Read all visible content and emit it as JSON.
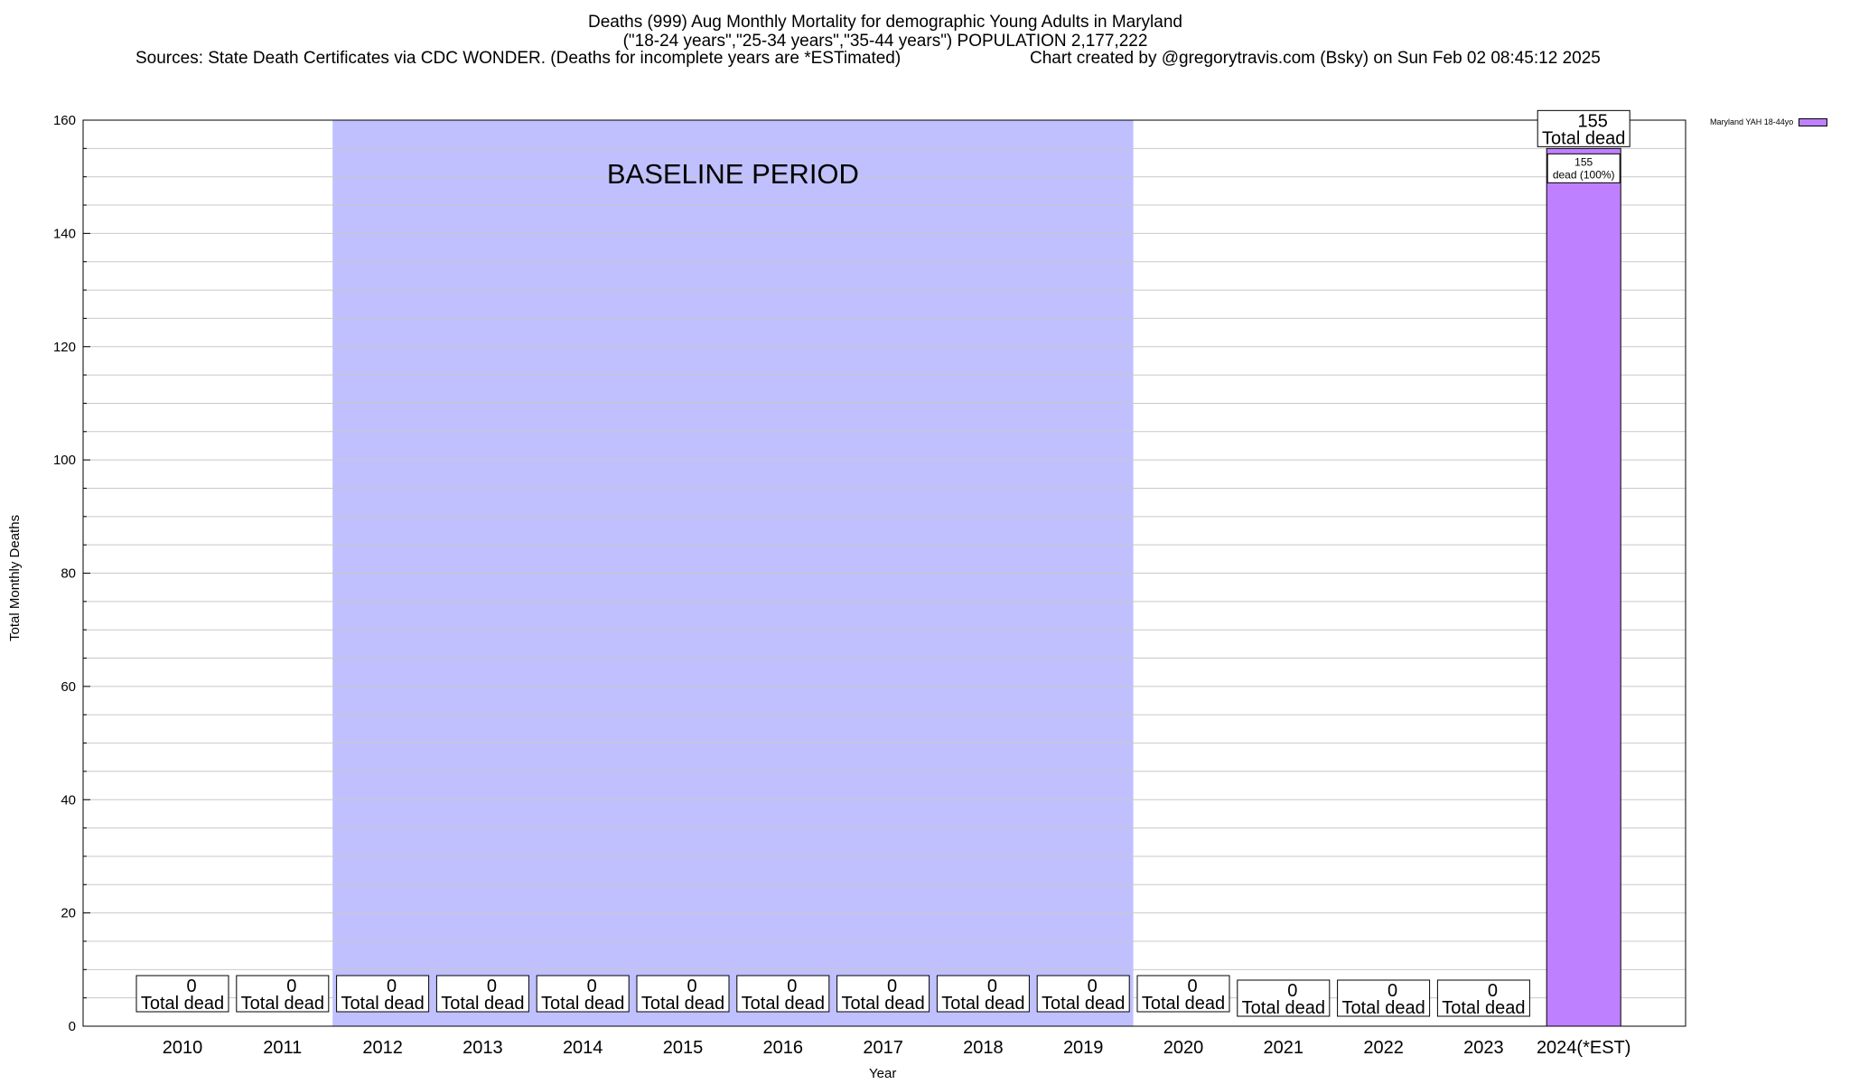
{
  "title": {
    "line1": "Deaths (999) Aug Monthly Mortality for demographic Young Adults in Maryland",
    "line2": "(\"18-24 years\",\"25-34 years\",\"35-44 years\") POPULATION 2,177,222",
    "line3": "Sources: State Death Certificates via CDC WONDER. (Deaths for incomplete years are *ESTimated)",
    "credit": "Chart created by @gregorytravis.com (Bsky) on Sun Feb 02 08:45:12 2025"
  },
  "colors": {
    "bar": "#bf80ff",
    "baseline": "#c0c0ff",
    "grid": "#c8c8c8"
  },
  "chart_data": {
    "type": "bar",
    "xlabel": "Year",
    "ylabel": "Total Monthly Deaths",
    "ylim": [
      0,
      160
    ],
    "yticks": [
      "0",
      "20",
      "40",
      "60",
      "80",
      "100",
      "120",
      "140",
      "160"
    ],
    "categories": [
      "2010",
      "2011",
      "2012",
      "2013",
      "2014",
      "2015",
      "2016",
      "2017",
      "2018",
      "2019",
      "2020",
      "2021",
      "2022",
      "2023",
      "2024(*EST)"
    ],
    "series": [
      {
        "name": "Maryland YAH 18-44yo",
        "values": [
          0,
          0,
          0,
          0,
          0,
          0,
          0,
          0,
          0,
          0,
          0,
          0,
          0,
          0,
          155
        ]
      }
    ],
    "bar_labels": [
      {
        "count": "0",
        "text": "Total dead"
      },
      {
        "count": "0",
        "text": "Total dead"
      },
      {
        "count": "0",
        "text": "Total dead"
      },
      {
        "count": "0",
        "text": "Total dead"
      },
      {
        "count": "0",
        "text": "Total dead"
      },
      {
        "count": "0",
        "text": "Total dead"
      },
      {
        "count": "0",
        "text": "Total dead"
      },
      {
        "count": "0",
        "text": "Total dead"
      },
      {
        "count": "0",
        "text": "Total dead"
      },
      {
        "count": "0",
        "text": "Total dead"
      },
      {
        "count": "0",
        "text": "Total dead"
      },
      {
        "count": "0",
        "text": "Total dead"
      },
      {
        "count": "0",
        "text": "Total dead"
      },
      {
        "count": "0",
        "text": "Total dead"
      },
      {
        "count": "155",
        "text": "Total dead"
      }
    ],
    "inner_label": {
      "count": "155",
      "text": "dead (100%)"
    },
    "baseline_region": {
      "label": "BASELINE PERIOD",
      "from": "2012",
      "to": "2019"
    },
    "legend": {
      "entry": "Maryland YAH 18-44yo",
      "position": "top-right"
    },
    "grid": true
  }
}
